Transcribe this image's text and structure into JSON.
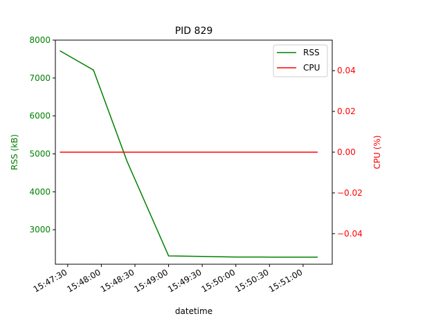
{
  "chart_data": {
    "type": "line",
    "title": "PID 829",
    "xlabel": "datetime",
    "ylabel_left": "RSS (kB)",
    "ylabel_right": "CPU (%)",
    "x_ticks": [
      "15:47:30",
      "15:48:00",
      "15:48:30",
      "15:49:00",
      "15:49:30",
      "15:50:00",
      "15:50:30",
      "15:51:00"
    ],
    "x_range": [
      "15:47:19",
      "15:51:26"
    ],
    "y_left_ticks": [
      3000,
      4000,
      5000,
      6000,
      7000,
      8000
    ],
    "y_left_range": [
      2090,
      8000
    ],
    "y_right_ticks": [
      -0.04,
      -0.02,
      0.0,
      0.02,
      0.04
    ],
    "y_right_tick_labels": [
      "−0.04",
      "−0.02",
      "0.00",
      "0.02",
      "0.04"
    ],
    "y_right_range": [
      -0.055,
      0.055
    ],
    "legend": {
      "position": "top-right"
    },
    "colors": {
      "rss": "#008000",
      "cpu": "#ff0000"
    },
    "series": [
      {
        "name": "RSS",
        "axis": "left",
        "x": [
          "15:47:23",
          "15:47:53",
          "15:48:23",
          "15:49:00",
          "15:49:30",
          "15:50:00",
          "15:50:30",
          "15:51:00",
          "15:51:13"
        ],
        "y": [
          7720,
          7210,
          4800,
          2310,
          2295,
          2280,
          2278,
          2277,
          2277
        ]
      },
      {
        "name": "CPU",
        "axis": "right",
        "x": [
          "15:47:23",
          "15:51:13"
        ],
        "y": [
          0.0,
          0.0
        ]
      }
    ]
  }
}
